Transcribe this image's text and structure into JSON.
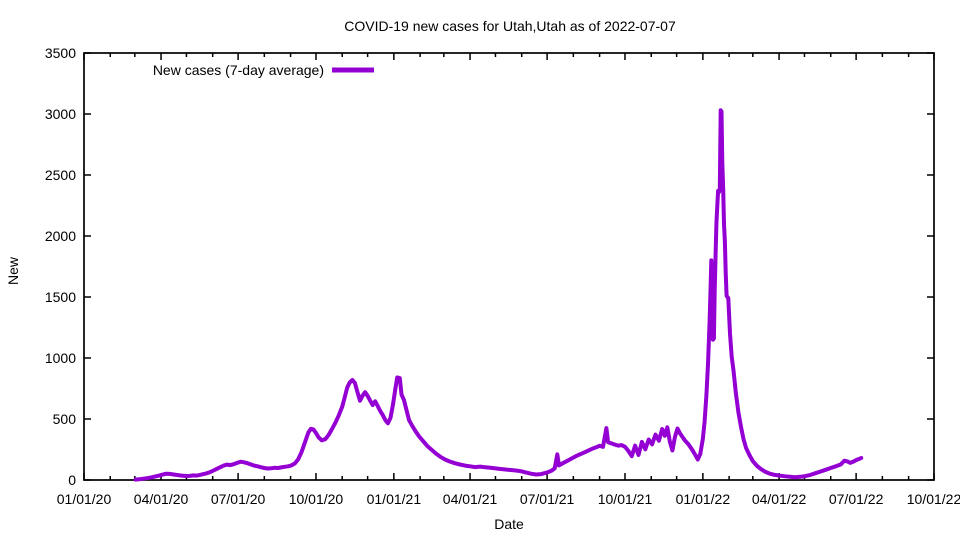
{
  "chart_data": {
    "type": "line",
    "title": "COVID-19 new cases for Utah,Utah as of 2022-07-07",
    "xlabel": "Date",
    "ylabel": "New",
    "grid": false,
    "legend_position": "top-left-inside",
    "x_range": [
      "2020-01-01",
      "2022-10-01"
    ],
    "ylim": [
      0,
      3500
    ],
    "y_ticks": [
      0,
      500,
      1000,
      1500,
      2000,
      2500,
      3000,
      3500
    ],
    "x_ticks": [
      {
        "date": "2020-01-01",
        "label": "01/01/20"
      },
      {
        "date": "2020-04-01",
        "label": "04/01/20"
      },
      {
        "date": "2020-07-01",
        "label": "07/01/20"
      },
      {
        "date": "2020-10-01",
        "label": "10/01/20"
      },
      {
        "date": "2021-01-01",
        "label": "01/01/21"
      },
      {
        "date": "2021-04-01",
        "label": "04/01/21"
      },
      {
        "date": "2021-07-01",
        "label": "07/01/21"
      },
      {
        "date": "2021-10-01",
        "label": "10/01/21"
      },
      {
        "date": "2022-01-01",
        "label": "01/01/22"
      },
      {
        "date": "2022-04-01",
        "label": "04/01/22"
      },
      {
        "date": "2022-07-01",
        "label": "07/01/22"
      },
      {
        "date": "2022-10-01",
        "label": "10/01/22"
      }
    ],
    "series": [
      {
        "name": "New cases (7-day average)",
        "color": "#9400D3",
        "line_width": 4,
        "points": [
          [
            "2020-03-02",
            3
          ],
          [
            "2020-03-06",
            6
          ],
          [
            "2020-03-10",
            10
          ],
          [
            "2020-03-14",
            14
          ],
          [
            "2020-03-18",
            18
          ],
          [
            "2020-03-22",
            24
          ],
          [
            "2020-03-26",
            30
          ],
          [
            "2020-03-30",
            36
          ],
          [
            "2020-04-03",
            44
          ],
          [
            "2020-04-07",
            52
          ],
          [
            "2020-04-11",
            50
          ],
          [
            "2020-04-15",
            46
          ],
          [
            "2020-04-19",
            42
          ],
          [
            "2020-04-23",
            38
          ],
          [
            "2020-04-27",
            35
          ],
          [
            "2020-05-01",
            33
          ],
          [
            "2020-05-05",
            34
          ],
          [
            "2020-05-09",
            38
          ],
          [
            "2020-05-13",
            36
          ],
          [
            "2020-05-17",
            42
          ],
          [
            "2020-05-21",
            48
          ],
          [
            "2020-05-25",
            55
          ],
          [
            "2020-05-29",
            65
          ],
          [
            "2020-06-02",
            78
          ],
          [
            "2020-06-06",
            92
          ],
          [
            "2020-06-10",
            105
          ],
          [
            "2020-06-14",
            118
          ],
          [
            "2020-06-18",
            126
          ],
          [
            "2020-06-22",
            122
          ],
          [
            "2020-06-26",
            130
          ],
          [
            "2020-06-30",
            140
          ],
          [
            "2020-07-04",
            150
          ],
          [
            "2020-07-08",
            145
          ],
          [
            "2020-07-12",
            138
          ],
          [
            "2020-07-16",
            128
          ],
          [
            "2020-07-20",
            118
          ],
          [
            "2020-07-24",
            112
          ],
          [
            "2020-07-28",
            105
          ],
          [
            "2020-08-01",
            98
          ],
          [
            "2020-08-05",
            94
          ],
          [
            "2020-08-09",
            96
          ],
          [
            "2020-08-13",
            100
          ],
          [
            "2020-08-17",
            98
          ],
          [
            "2020-08-21",
            103
          ],
          [
            "2020-08-25",
            108
          ],
          [
            "2020-08-29",
            112
          ],
          [
            "2020-09-02",
            120
          ],
          [
            "2020-09-06",
            135
          ],
          [
            "2020-09-10",
            170
          ],
          [
            "2020-09-14",
            230
          ],
          [
            "2020-09-18",
            310
          ],
          [
            "2020-09-22",
            390
          ],
          [
            "2020-09-25",
            420
          ],
          [
            "2020-09-28",
            415
          ],
          [
            "2020-10-01",
            385
          ],
          [
            "2020-10-04",
            350
          ],
          [
            "2020-10-08",
            325
          ],
          [
            "2020-10-12",
            335
          ],
          [
            "2020-10-16",
            370
          ],
          [
            "2020-10-20",
            420
          ],
          [
            "2020-10-24",
            470
          ],
          [
            "2020-10-28",
            530
          ],
          [
            "2020-11-01",
            600
          ],
          [
            "2020-11-04",
            680
          ],
          [
            "2020-11-07",
            760
          ],
          [
            "2020-11-10",
            800
          ],
          [
            "2020-11-13",
            820
          ],
          [
            "2020-11-16",
            795
          ],
          [
            "2020-11-19",
            720
          ],
          [
            "2020-11-22",
            650
          ],
          [
            "2020-11-25",
            690
          ],
          [
            "2020-11-28",
            720
          ],
          [
            "2020-12-01",
            690
          ],
          [
            "2020-12-04",
            650
          ],
          [
            "2020-12-07",
            615
          ],
          [
            "2020-12-10",
            645
          ],
          [
            "2020-12-13",
            605
          ],
          [
            "2020-12-16",
            565
          ],
          [
            "2020-12-19",
            530
          ],
          [
            "2020-12-22",
            490
          ],
          [
            "2020-12-25",
            465
          ],
          [
            "2020-12-28",
            510
          ],
          [
            "2020-12-31",
            620
          ],
          [
            "2021-01-03",
            760
          ],
          [
            "2021-01-05",
            840
          ],
          [
            "2021-01-08",
            835
          ],
          [
            "2021-01-10",
            700
          ],
          [
            "2021-01-13",
            655
          ],
          [
            "2021-01-16",
            570
          ],
          [
            "2021-01-19",
            490
          ],
          [
            "2021-01-23",
            440
          ],
          [
            "2021-01-27",
            395
          ],
          [
            "2021-01-31",
            355
          ],
          [
            "2021-02-05",
            315
          ],
          [
            "2021-02-10",
            275
          ],
          [
            "2021-02-15",
            245
          ],
          [
            "2021-02-20",
            215
          ],
          [
            "2021-02-25",
            190
          ],
          [
            "2021-03-02",
            170
          ],
          [
            "2021-03-08",
            152
          ],
          [
            "2021-03-14",
            138
          ],
          [
            "2021-03-20",
            127
          ],
          [
            "2021-03-26",
            118
          ],
          [
            "2021-04-01",
            112
          ],
          [
            "2021-04-07",
            106
          ],
          [
            "2021-04-13",
            110
          ],
          [
            "2021-04-19",
            104
          ],
          [
            "2021-04-25",
            100
          ],
          [
            "2021-05-01",
            95
          ],
          [
            "2021-05-07",
            90
          ],
          [
            "2021-05-13",
            86
          ],
          [
            "2021-05-19",
            82
          ],
          [
            "2021-05-25",
            78
          ],
          [
            "2021-05-31",
            72
          ],
          [
            "2021-06-06",
            62
          ],
          [
            "2021-06-12",
            52
          ],
          [
            "2021-06-18",
            45
          ],
          [
            "2021-06-24",
            48
          ],
          [
            "2021-06-30",
            60
          ],
          [
            "2021-07-06",
            75
          ],
          [
            "2021-07-10",
            95
          ],
          [
            "2021-07-13",
            210
          ],
          [
            "2021-07-15",
            120
          ],
          [
            "2021-07-19",
            135
          ],
          [
            "2021-07-23",
            150
          ],
          [
            "2021-07-27",
            165
          ],
          [
            "2021-07-31",
            180
          ],
          [
            "2021-08-04",
            195
          ],
          [
            "2021-08-08",
            208
          ],
          [
            "2021-08-12",
            220
          ],
          [
            "2021-08-16",
            232
          ],
          [
            "2021-08-20",
            245
          ],
          [
            "2021-08-24",
            258
          ],
          [
            "2021-08-28",
            268
          ],
          [
            "2021-09-01",
            280
          ],
          [
            "2021-09-05",
            272
          ],
          [
            "2021-09-09",
            425
          ],
          [
            "2021-09-11",
            310
          ],
          [
            "2021-09-15",
            300
          ],
          [
            "2021-09-19",
            290
          ],
          [
            "2021-09-23",
            282
          ],
          [
            "2021-09-27",
            286
          ],
          [
            "2021-10-01",
            272
          ],
          [
            "2021-10-05",
            238
          ],
          [
            "2021-10-09",
            195
          ],
          [
            "2021-10-13",
            282
          ],
          [
            "2021-10-17",
            205
          ],
          [
            "2021-10-21",
            312
          ],
          [
            "2021-10-25",
            252
          ],
          [
            "2021-10-29",
            332
          ],
          [
            "2021-11-02",
            292
          ],
          [
            "2021-11-06",
            372
          ],
          [
            "2021-11-10",
            322
          ],
          [
            "2021-11-14",
            418
          ],
          [
            "2021-11-17",
            362
          ],
          [
            "2021-11-20",
            432
          ],
          [
            "2021-11-23",
            312
          ],
          [
            "2021-11-26",
            242
          ],
          [
            "2021-11-29",
            352
          ],
          [
            "2021-12-02",
            422
          ],
          [
            "2021-12-05",
            382
          ],
          [
            "2021-12-08",
            352
          ],
          [
            "2021-12-11",
            322
          ],
          [
            "2021-12-15",
            292
          ],
          [
            "2021-12-19",
            252
          ],
          [
            "2021-12-23",
            205
          ],
          [
            "2021-12-26",
            168
          ],
          [
            "2021-12-29",
            215
          ],
          [
            "2022-01-01",
            340
          ],
          [
            "2022-01-03",
            480
          ],
          [
            "2022-01-05",
            680
          ],
          [
            "2022-01-07",
            950
          ],
          [
            "2022-01-09",
            1300
          ],
          [
            "2022-01-10",
            1550
          ],
          [
            "2022-01-11",
            1800
          ],
          [
            "2022-01-12",
            1500
          ],
          [
            "2022-01-13",
            1150
          ],
          [
            "2022-01-14",
            1160
          ],
          [
            "2022-01-15",
            1550
          ],
          [
            "2022-01-16",
            1850
          ],
          [
            "2022-01-17",
            2100
          ],
          [
            "2022-01-18",
            2250
          ],
          [
            "2022-01-19",
            2370
          ],
          [
            "2022-01-20",
            2360
          ],
          [
            "2022-01-21",
            2380
          ],
          [
            "2022-01-22",
            3030
          ],
          [
            "2022-01-23",
            3020
          ],
          [
            "2022-01-24",
            2600
          ],
          [
            "2022-01-25",
            2380
          ],
          [
            "2022-01-26",
            2100
          ],
          [
            "2022-01-27",
            1950
          ],
          [
            "2022-01-28",
            1700
          ],
          [
            "2022-01-29",
            1510
          ],
          [
            "2022-01-31",
            1490
          ],
          [
            "2022-02-02",
            1200
          ],
          [
            "2022-02-04",
            1010
          ],
          [
            "2022-02-06",
            905
          ],
          [
            "2022-02-09",
            710
          ],
          [
            "2022-02-12",
            555
          ],
          [
            "2022-02-15",
            435
          ],
          [
            "2022-02-18",
            335
          ],
          [
            "2022-02-21",
            262
          ],
          [
            "2022-02-25",
            205
          ],
          [
            "2022-03-01",
            155
          ],
          [
            "2022-03-06",
            115
          ],
          [
            "2022-03-11",
            88
          ],
          [
            "2022-03-16",
            66
          ],
          [
            "2022-03-21",
            52
          ],
          [
            "2022-03-27",
            42
          ],
          [
            "2022-04-02",
            35
          ],
          [
            "2022-04-08",
            30
          ],
          [
            "2022-04-14",
            26
          ],
          [
            "2022-04-20",
            23
          ],
          [
            "2022-04-26",
            26
          ],
          [
            "2022-05-02",
            32
          ],
          [
            "2022-05-08",
            42
          ],
          [
            "2022-05-14",
            56
          ],
          [
            "2022-05-20",
            70
          ],
          [
            "2022-05-26",
            84
          ],
          [
            "2022-06-01",
            98
          ],
          [
            "2022-06-07",
            112
          ],
          [
            "2022-06-13",
            128
          ],
          [
            "2022-06-17",
            158
          ],
          [
            "2022-06-21",
            152
          ],
          [
            "2022-06-24",
            140
          ],
          [
            "2022-06-28",
            152
          ],
          [
            "2022-07-02",
            166
          ],
          [
            "2022-07-05",
            174
          ],
          [
            "2022-07-07",
            180
          ]
        ]
      }
    ]
  }
}
